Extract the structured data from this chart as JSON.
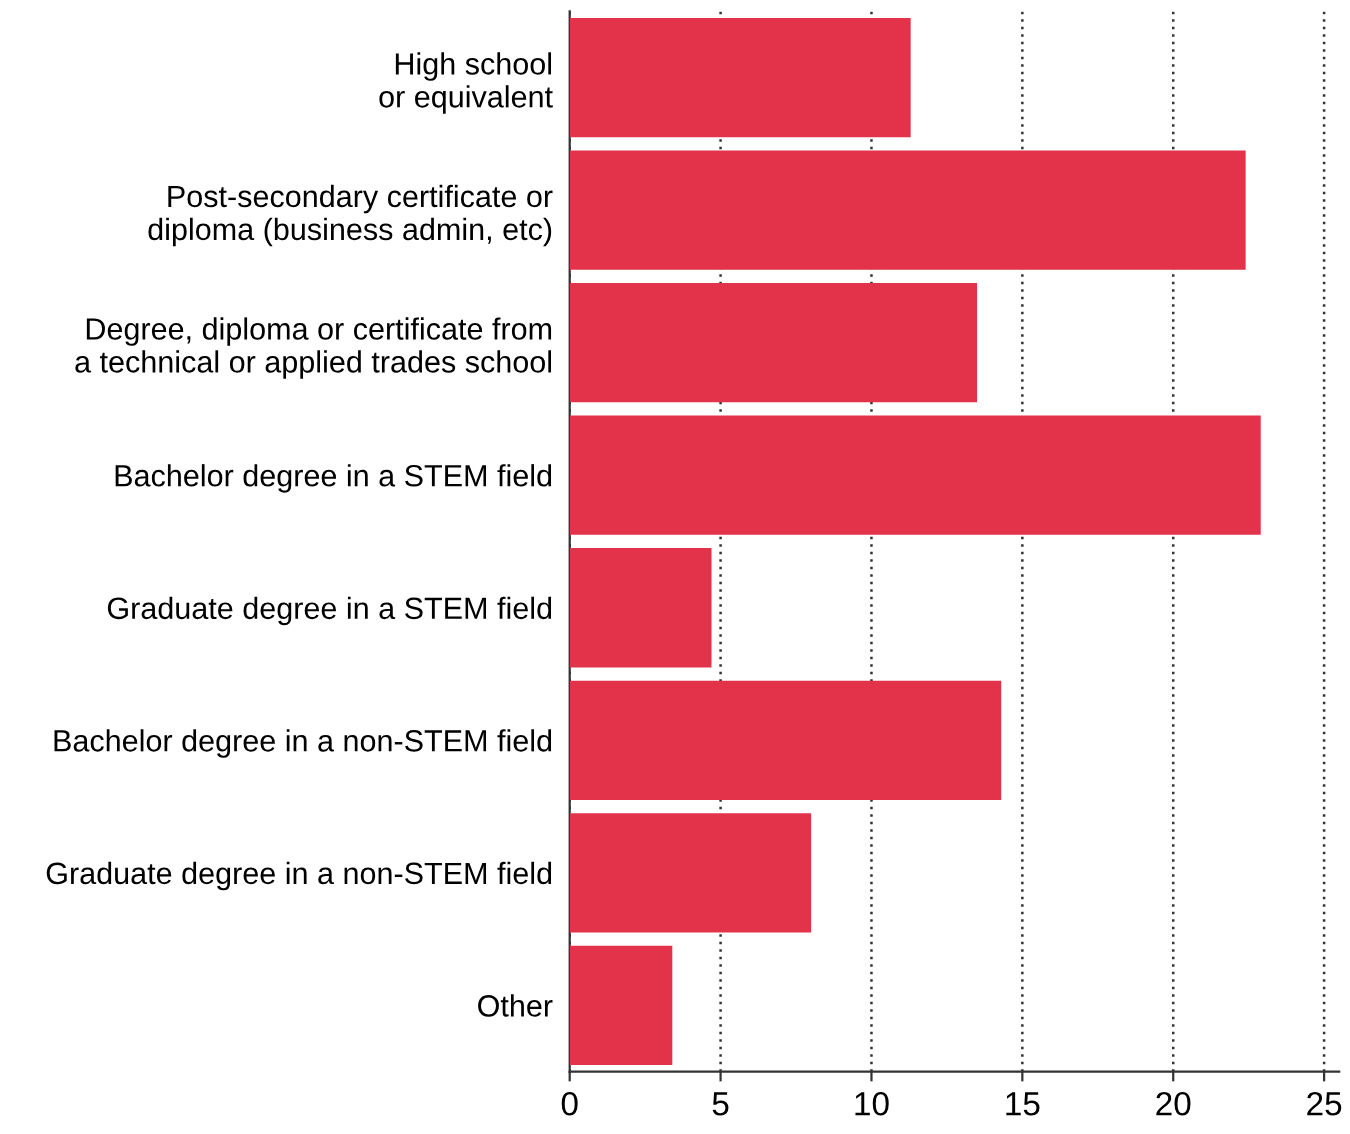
{
  "chart_data": {
    "type": "bar",
    "orientation": "horizontal",
    "categories": [
      "High school\nor equivalent",
      "Post-secondary certificate or\ndiploma (business admin, etc)",
      "Degree, diploma or certificate from\na technical or applied trades school",
      "Bachelor degree in a STEM field",
      "Graduate degree in a STEM field",
      "Bachelor degree in a non-STEM field",
      "Graduate degree in a non-STEM field",
      "Other"
    ],
    "values": [
      11.3,
      22.4,
      13.5,
      22.9,
      4.7,
      14.3,
      8.0,
      3.4
    ],
    "color": "#e2334a",
    "xlim": [
      0,
      25.5
    ],
    "xticks": [
      0,
      5,
      10,
      15,
      20,
      25
    ],
    "grid": "x"
  }
}
